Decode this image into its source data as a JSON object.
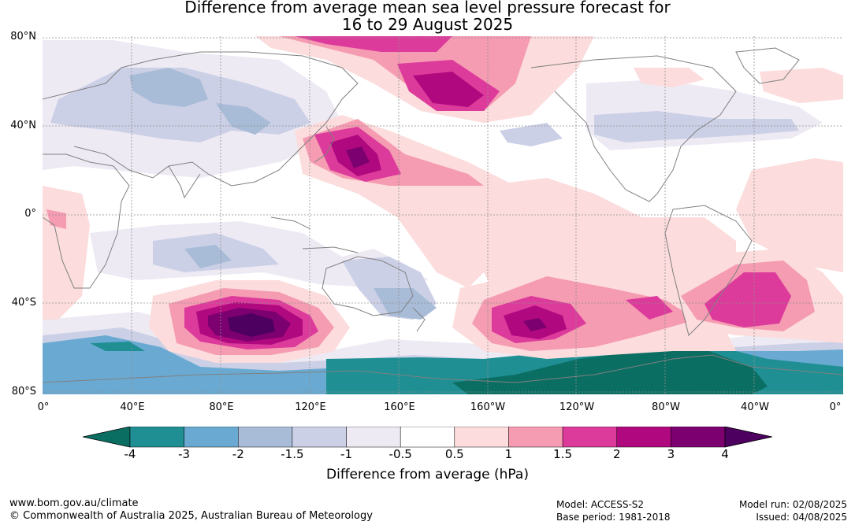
{
  "title": {
    "line1": "Difference from average mean sea level pressure forecast for",
    "line2": "16 to 29 August 2025"
  },
  "map": {
    "lat_labels": [
      "80°N",
      "40°N",
      "0°",
      "40°S",
      "80°S"
    ],
    "lon_labels": [
      "0°",
      "40°E",
      "80°E",
      "120°E",
      "160°E",
      "160°W",
      "120°W",
      "80°W",
      "40°W",
      "0°"
    ]
  },
  "colorbar": {
    "ticks": [
      "-4",
      "-3",
      "-2",
      "-1.5",
      "-1",
      "-0.5",
      "0.5",
      "1",
      "1.5",
      "2",
      "3",
      "4"
    ],
    "colors": [
      "#0b6e62",
      "#1f8f94",
      "#6aaad2",
      "#a8bcd8",
      "#ccd0e6",
      "#eeeaf4",
      "#ffffff",
      "#fcdcdc",
      "#f59bb2",
      "#dd3b9b",
      "#b0087f",
      "#7c0070",
      "#4d0060"
    ],
    "label": "Difference from average (hPa)"
  },
  "footer": {
    "website": "www.bom.gov.au/climate",
    "copyright": "© Commonwealth of Australia 2025, Australian Bureau of Meteorology",
    "model": "Model: ACCESS-S2",
    "base_period": "Base period: 1981-2018",
    "model_run": "Model run: 02/08/2025",
    "issued": "Issued: 04/08/2025"
  }
}
